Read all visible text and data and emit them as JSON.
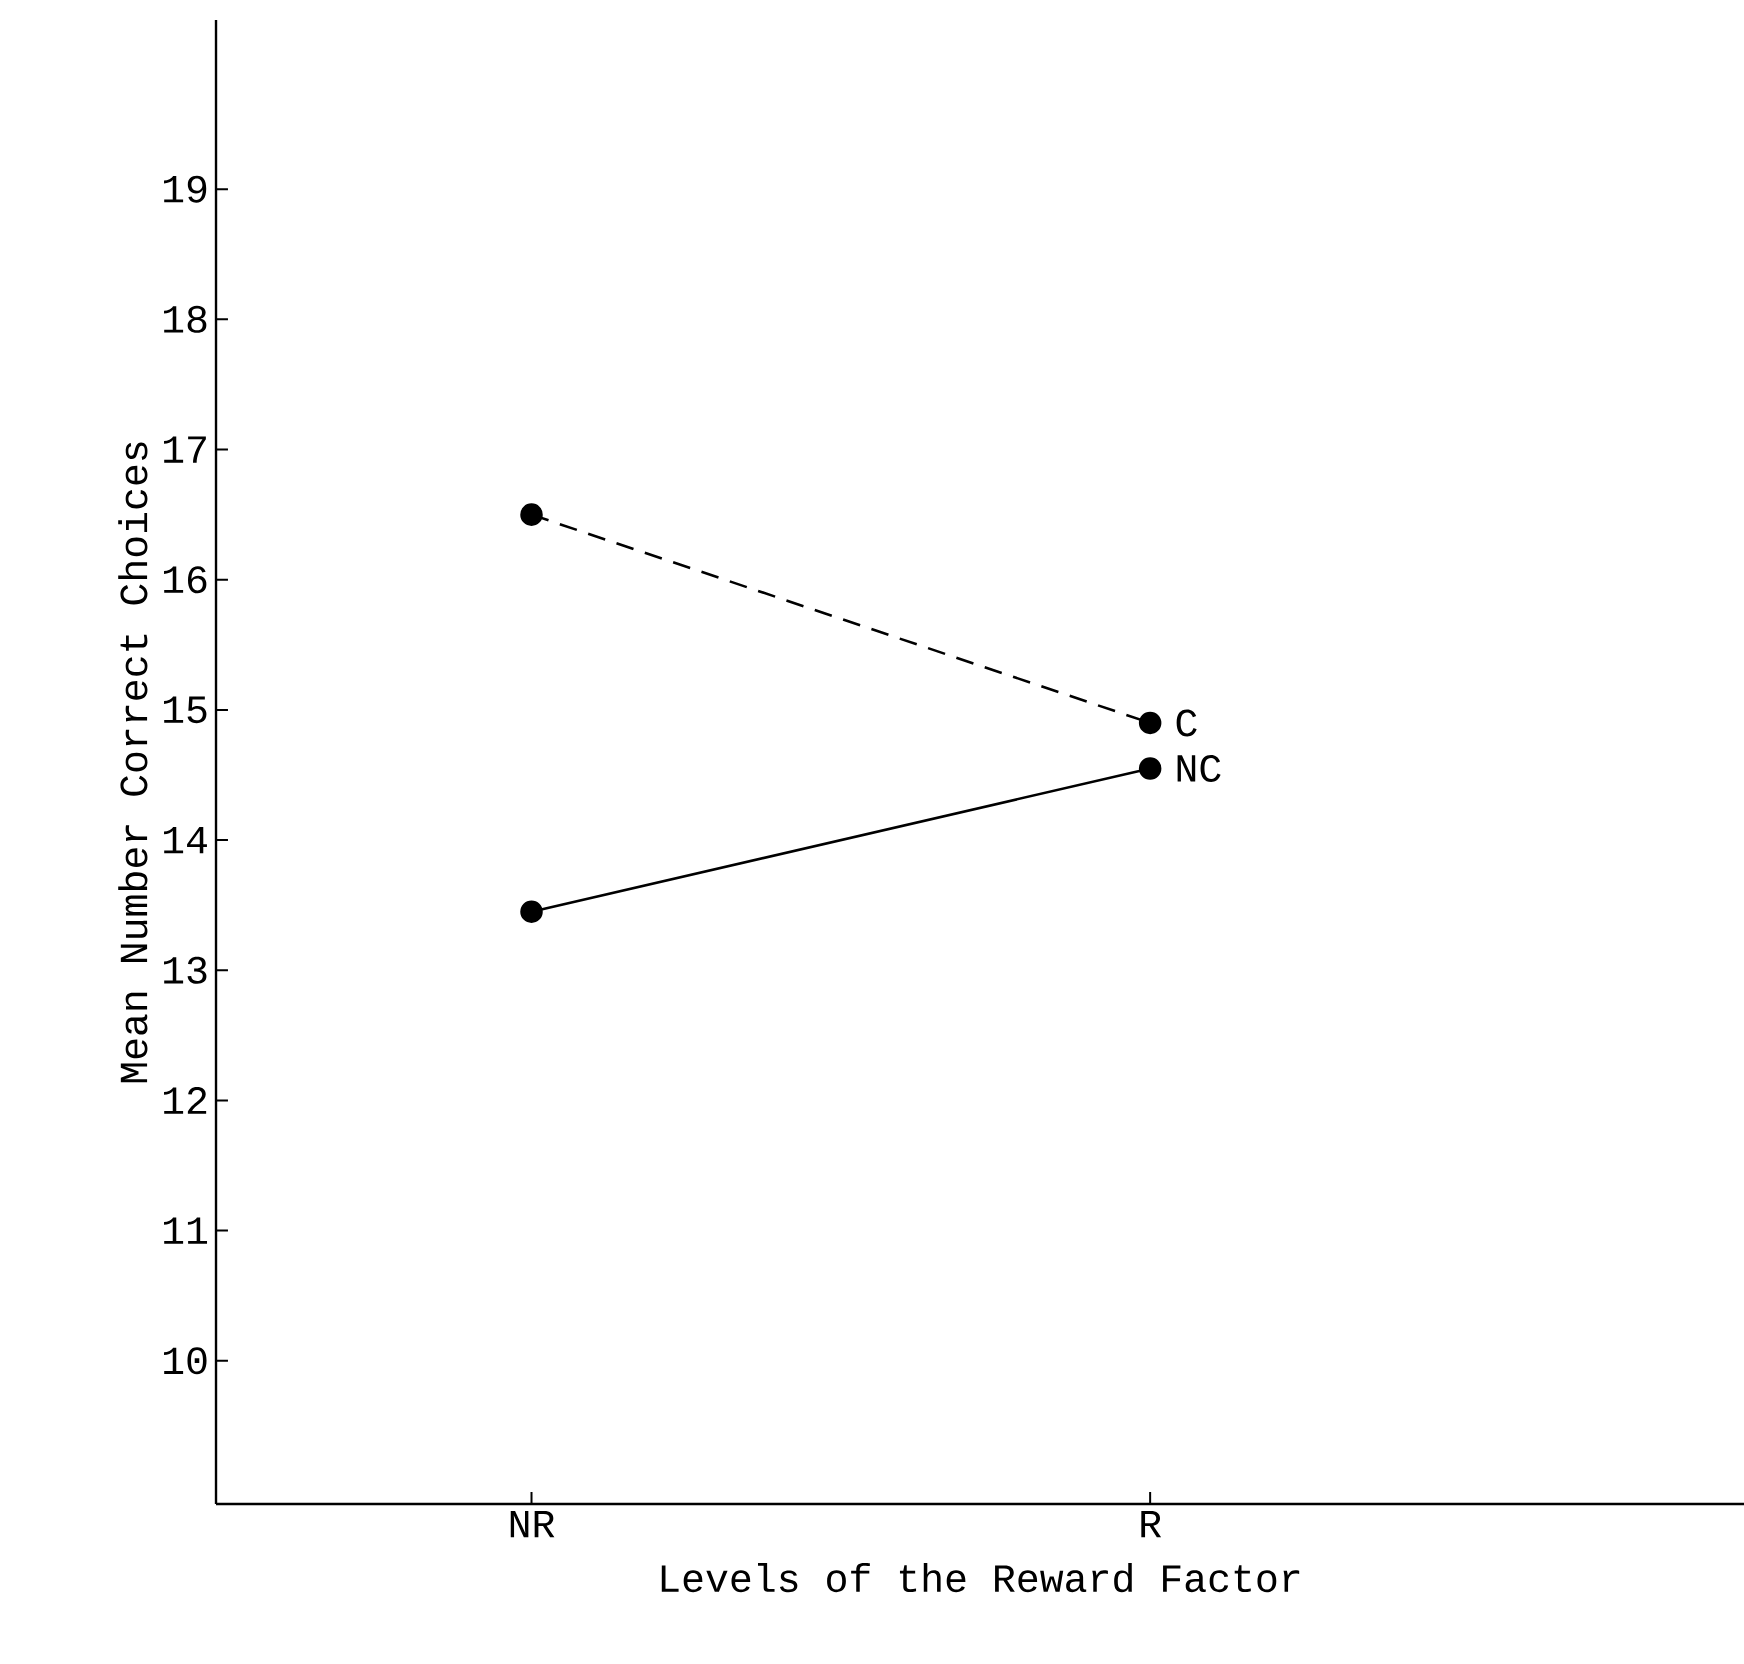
{
  "chart_data": {
    "type": "line",
    "xlabel": "Levels of the Reward Factor",
    "ylabel": "Mean Number Correct Choices",
    "categories": [
      "NR",
      "R"
    ],
    "series": [
      {
        "name": "C",
        "color": "#000000",
        "values": [
          16.5,
          14.9
        ],
        "line_style": "dashed"
      },
      {
        "name": "NC",
        "color": "#000000",
        "values": [
          13.45,
          14.55
        ],
        "line_style": "solid"
      }
    ],
    "ylim": [
      8.9,
      20.3
    ],
    "yticks": [
      10,
      11,
      12,
      13,
      14,
      15,
      16,
      17,
      18,
      19
    ],
    "marker": "circle",
    "grid": false
  }
}
